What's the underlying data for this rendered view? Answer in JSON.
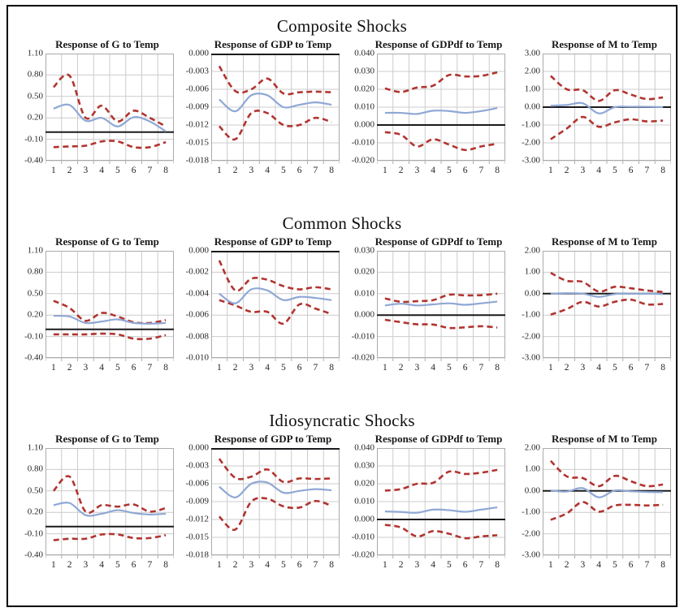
{
  "figure": {
    "background": "#ffffff",
    "border_color": "#000000"
  },
  "colors": {
    "response_line": "#8FA8D5",
    "confidence_band": "#B13430",
    "zero_line": "#1A1A1E",
    "gridline": "#CCCCCC",
    "plot_border": "#ABABAB",
    "text": "#1F1F1F"
  },
  "sections": [
    {
      "title": "Composite Shocks"
    },
    {
      "title": "Common Shocks"
    },
    {
      "title": "Idiosyncratic Shocks"
    }
  ],
  "chart_data": [
    {
      "section": "Composite Shocks",
      "title": "Response of G to Temp",
      "type": "line",
      "x": [
        1,
        2,
        3,
        4,
        5,
        6,
        7,
        8
      ],
      "ylim": [
        -0.4,
        1.1
      ],
      "ytick_step": 0.3,
      "y_decimals": 2,
      "grid": true,
      "legend": "none",
      "series": [
        {
          "name": "response",
          "style": "solid",
          "color_key": "response_line",
          "values": [
            0.33,
            0.38,
            0.16,
            0.2,
            0.08,
            0.21,
            0.15,
            0.01
          ]
        },
        {
          "name": "upper-band",
          "style": "dashed",
          "color_key": "confidence_band",
          "values": [
            0.63,
            0.79,
            0.2,
            0.37,
            0.15,
            0.3,
            0.2,
            0.08
          ]
        },
        {
          "name": "lower-band",
          "style": "dashed",
          "color_key": "confidence_band",
          "values": [
            -0.21,
            -0.2,
            -0.19,
            -0.13,
            -0.13,
            -0.21,
            -0.21,
            -0.14
          ]
        }
      ]
    },
    {
      "section": "Composite Shocks",
      "title": "Response of GDP to Temp",
      "type": "line",
      "x": [
        1,
        2,
        3,
        4,
        5,
        6,
        7,
        8
      ],
      "ylim": [
        -0.018,
        0.0
      ],
      "ytick_step": 0.003,
      "y_decimals": 3,
      "grid": true,
      "legend": "none",
      "series": [
        {
          "name": "response",
          "style": "solid",
          "color_key": "response_line",
          "values": [
            -0.0077,
            -0.0097,
            -0.007,
            -0.007,
            -0.009,
            -0.0086,
            -0.0082,
            -0.0086
          ]
        },
        {
          "name": "upper-band",
          "style": "dashed",
          "color_key": "confidence_band",
          "values": [
            -0.0021,
            -0.0063,
            -0.006,
            -0.0042,
            -0.0067,
            -0.0065,
            -0.0064,
            -0.0065
          ]
        },
        {
          "name": "lower-band",
          "style": "dashed",
          "color_key": "confidence_band",
          "values": [
            -0.0122,
            -0.0144,
            -0.01,
            -0.01,
            -0.012,
            -0.012,
            -0.0108,
            -0.0115
          ]
        }
      ]
    },
    {
      "section": "Composite Shocks",
      "title": "Response of GDPdf to Temp",
      "type": "line",
      "x": [
        1,
        2,
        3,
        4,
        5,
        6,
        7,
        8
      ],
      "ylim": [
        -0.02,
        0.04
      ],
      "ytick_step": 0.01,
      "y_decimals": 3,
      "grid": true,
      "legend": "none",
      "series": [
        {
          "name": "response",
          "style": "solid",
          "color_key": "response_line",
          "values": [
            0.0068,
            0.0068,
            0.0062,
            0.008,
            0.0078,
            0.0068,
            0.0078,
            0.0095
          ]
        },
        {
          "name": "upper-band",
          "style": "dashed",
          "color_key": "confidence_band",
          "values": [
            0.0205,
            0.0185,
            0.021,
            0.022,
            0.028,
            0.0272,
            0.0275,
            0.0295
          ]
        },
        {
          "name": "lower-band",
          "style": "dashed",
          "color_key": "confidence_band",
          "values": [
            -0.004,
            -0.0055,
            -0.012,
            -0.008,
            -0.011,
            -0.014,
            -0.012,
            -0.0105
          ]
        }
      ]
    },
    {
      "section": "Composite Shocks",
      "title": "Response of M to Temp",
      "type": "line",
      "x": [
        1,
        2,
        3,
        4,
        5,
        6,
        7,
        8
      ],
      "ylim": [
        -3.0,
        3.0
      ],
      "ytick_step": 1.0,
      "y_decimals": 2,
      "grid": true,
      "legend": "none",
      "series": [
        {
          "name": "response",
          "style": "solid",
          "color_key": "response_line",
          "values": [
            0.08,
            0.12,
            0.22,
            -0.35,
            0.0,
            0.02,
            0.02,
            0.0
          ]
        },
        {
          "name": "upper-band",
          "style": "dashed",
          "color_key": "confidence_band",
          "values": [
            1.75,
            1.0,
            0.95,
            0.35,
            0.95,
            0.7,
            0.45,
            0.55
          ]
        },
        {
          "name": "lower-band",
          "style": "dashed",
          "color_key": "confidence_band",
          "values": [
            -1.8,
            -1.2,
            -0.55,
            -1.1,
            -0.85,
            -0.68,
            -0.8,
            -0.75
          ]
        }
      ]
    },
    {
      "section": "Common Shocks",
      "title": "Response of G to Temp",
      "type": "line",
      "x": [
        1,
        2,
        3,
        4,
        5,
        6,
        7,
        8
      ],
      "ylim": [
        -0.4,
        1.1
      ],
      "ytick_step": 0.3,
      "y_decimals": 2,
      "grid": true,
      "legend": "none",
      "series": [
        {
          "name": "response",
          "style": "solid",
          "color_key": "response_line",
          "values": [
            0.19,
            0.18,
            0.09,
            0.11,
            0.14,
            0.09,
            0.08,
            0.09
          ]
        },
        {
          "name": "upper-band",
          "style": "dashed",
          "color_key": "confidence_band",
          "values": [
            0.4,
            0.3,
            0.12,
            0.23,
            0.18,
            0.1,
            0.09,
            0.13
          ]
        },
        {
          "name": "lower-band",
          "style": "dashed",
          "color_key": "confidence_band",
          "values": [
            -0.07,
            -0.07,
            -0.07,
            -0.06,
            -0.07,
            -0.13,
            -0.13,
            -0.08
          ]
        }
      ]
    },
    {
      "section": "Common Shocks",
      "title": "Response of GDP to Temp",
      "type": "line",
      "x": [
        1,
        2,
        3,
        4,
        5,
        6,
        7,
        8
      ],
      "ylim": [
        -0.01,
        0.0
      ],
      "ytick_step": 0.002,
      "y_decimals": 3,
      "grid": true,
      "legend": "none",
      "series": [
        {
          "name": "response",
          "style": "solid",
          "color_key": "response_line",
          "values": [
            -0.004,
            -0.0049,
            -0.0036,
            -0.0037,
            -0.0046,
            -0.0043,
            -0.0044,
            -0.0046
          ]
        },
        {
          "name": "upper-band",
          "style": "dashed",
          "color_key": "confidence_band",
          "values": [
            -0.0009,
            -0.0037,
            -0.0026,
            -0.0027,
            -0.0033,
            -0.0036,
            -0.0034,
            -0.0036
          ]
        },
        {
          "name": "lower-band",
          "style": "dashed",
          "color_key": "confidence_band",
          "values": [
            -0.0046,
            -0.0051,
            -0.0057,
            -0.0057,
            -0.0068,
            -0.005,
            -0.0054,
            -0.0059
          ]
        }
      ]
    },
    {
      "section": "Common Shocks",
      "title": "Response of GDPdf to Temp",
      "type": "line",
      "x": [
        1,
        2,
        3,
        4,
        5,
        6,
        7,
        8
      ],
      "ylim": [
        -0.02,
        0.03
      ],
      "ytick_step": 0.01,
      "y_decimals": 3,
      "grid": true,
      "legend": "none",
      "series": [
        {
          "name": "response",
          "style": "solid",
          "color_key": "response_line",
          "values": [
            0.0045,
            0.0053,
            0.0045,
            0.005,
            0.0055,
            0.0048,
            0.0055,
            0.0063
          ]
        },
        {
          "name": "upper-band",
          "style": "dashed",
          "color_key": "confidence_band",
          "values": [
            0.0078,
            0.0062,
            0.0065,
            0.007,
            0.0095,
            0.0092,
            0.0093,
            0.01
          ]
        },
        {
          "name": "lower-band",
          "style": "dashed",
          "color_key": "confidence_band",
          "values": [
            -0.0022,
            -0.0033,
            -0.0043,
            -0.0044,
            -0.006,
            -0.0057,
            -0.0052,
            -0.0058
          ]
        }
      ]
    },
    {
      "section": "Common Shocks",
      "title": "Response of M to Temp",
      "type": "line",
      "x": [
        1,
        2,
        3,
        4,
        5,
        6,
        7,
        8
      ],
      "ylim": [
        -3.0,
        2.0
      ],
      "ytick_step": 1.0,
      "y_decimals": 2,
      "grid": true,
      "legend": "none",
      "series": [
        {
          "name": "response",
          "style": "solid",
          "color_key": "response_line",
          "values": [
            0.0,
            0.02,
            0.0,
            -0.15,
            -0.02,
            0.0,
            0.0,
            -0.02
          ]
        },
        {
          "name": "upper-band",
          "style": "dashed",
          "color_key": "confidence_band",
          "values": [
            0.97,
            0.6,
            0.55,
            0.1,
            0.32,
            0.25,
            0.15,
            0.08
          ]
        },
        {
          "name": "lower-band",
          "style": "dashed",
          "color_key": "confidence_band",
          "values": [
            -0.98,
            -0.72,
            -0.38,
            -0.6,
            -0.38,
            -0.28,
            -0.5,
            -0.48
          ]
        }
      ]
    },
    {
      "section": "Idiosyncratic Shocks",
      "title": "Response of G to Temp",
      "type": "line",
      "x": [
        1,
        2,
        3,
        4,
        5,
        6,
        7,
        8
      ],
      "ylim": [
        -0.4,
        1.1
      ],
      "ytick_step": 0.3,
      "y_decimals": 2,
      "grid": true,
      "legend": "none",
      "series": [
        {
          "name": "response",
          "style": "solid",
          "color_key": "response_line",
          "values": [
            0.3,
            0.33,
            0.16,
            0.18,
            0.23,
            0.19,
            0.17,
            0.18
          ]
        },
        {
          "name": "upper-band",
          "style": "dashed",
          "color_key": "confidence_band",
          "values": [
            0.5,
            0.7,
            0.21,
            0.3,
            0.28,
            0.31,
            0.21,
            0.26
          ]
        },
        {
          "name": "lower-band",
          "style": "dashed",
          "color_key": "confidence_band",
          "values": [
            -0.19,
            -0.17,
            -0.17,
            -0.11,
            -0.11,
            -0.16,
            -0.16,
            -0.12
          ]
        }
      ]
    },
    {
      "section": "Idiosyncratic Shocks",
      "title": "Response of GDP to Temp",
      "type": "line",
      "x": [
        1,
        2,
        3,
        4,
        5,
        6,
        7,
        8
      ],
      "ylim": [
        -0.018,
        0.0
      ],
      "ytick_step": 0.003,
      "y_decimals": 3,
      "grid": true,
      "legend": "none",
      "series": [
        {
          "name": "response",
          "style": "solid",
          "color_key": "response_line",
          "values": [
            -0.0065,
            -0.0083,
            -0.006,
            -0.0058,
            -0.0075,
            -0.0072,
            -0.0069,
            -0.0071
          ]
        },
        {
          "name": "upper-band",
          "style": "dashed",
          "color_key": "confidence_band",
          "values": [
            -0.0018,
            -0.005,
            -0.0048,
            -0.0036,
            -0.0057,
            -0.0051,
            -0.0052,
            -0.0051
          ]
        },
        {
          "name": "lower-band",
          "style": "dashed",
          "color_key": "confidence_band",
          "values": [
            -0.0115,
            -0.0137,
            -0.009,
            -0.0085,
            -0.0098,
            -0.01,
            -0.0089,
            -0.0097
          ]
        }
      ]
    },
    {
      "section": "Idiosyncratic Shocks",
      "title": "Response of GDPdf to Temp",
      "type": "line",
      "x": [
        1,
        2,
        3,
        4,
        5,
        6,
        7,
        8
      ],
      "ylim": [
        -0.02,
        0.04
      ],
      "ytick_step": 0.01,
      "y_decimals": 3,
      "grid": true,
      "legend": "none",
      "series": [
        {
          "name": "response",
          "style": "solid",
          "color_key": "response_line",
          "values": [
            0.0045,
            0.0042,
            0.0038,
            0.0055,
            0.0052,
            0.0043,
            0.0055,
            0.0068
          ]
        },
        {
          "name": "upper-band",
          "style": "dashed",
          "color_key": "confidence_band",
          "values": [
            0.0162,
            0.017,
            0.02,
            0.0205,
            0.0268,
            0.0255,
            0.0262,
            0.0278
          ]
        },
        {
          "name": "lower-band",
          "style": "dashed",
          "color_key": "confidence_band",
          "values": [
            -0.003,
            -0.0045,
            -0.0095,
            -0.0065,
            -0.008,
            -0.0105,
            -0.0095,
            -0.0088
          ]
        }
      ]
    },
    {
      "section": "Idiosyncratic Shocks",
      "title": "Response of M to Temp",
      "type": "line",
      "x": [
        1,
        2,
        3,
        4,
        5,
        6,
        7,
        8
      ],
      "ylim": [
        -3.0,
        2.0
      ],
      "ytick_step": 1.0,
      "y_decimals": 2,
      "grid": true,
      "legend": "none",
      "series": [
        {
          "name": "response",
          "style": "solid",
          "color_key": "response_line",
          "values": [
            0.02,
            -0.03,
            0.13,
            -0.3,
            0.02,
            -0.02,
            -0.05,
            -0.06
          ]
        },
        {
          "name": "upper-band",
          "style": "dashed",
          "color_key": "confidence_band",
          "values": [
            1.4,
            0.68,
            0.6,
            0.22,
            0.7,
            0.45,
            0.22,
            0.3
          ]
        },
        {
          "name": "lower-band",
          "style": "dashed",
          "color_key": "confidence_band",
          "values": [
            -1.35,
            -1.05,
            -0.52,
            -0.97,
            -0.68,
            -0.65,
            -0.68,
            -0.65
          ]
        }
      ]
    }
  ]
}
